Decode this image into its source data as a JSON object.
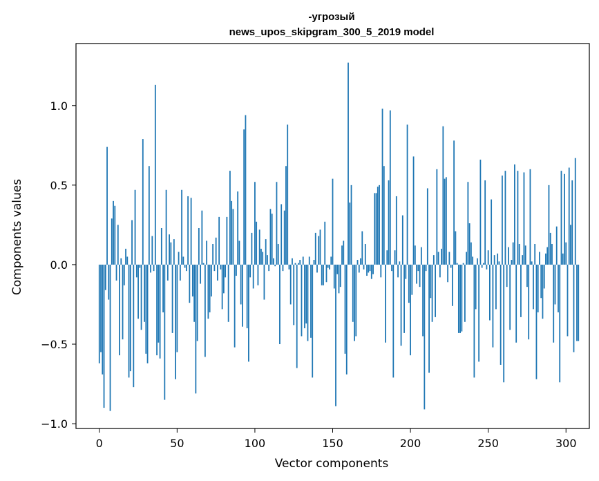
{
  "chart_data": {
    "type": "bar",
    "title_lines": [
      "-угрозый",
      "news_upos_skipgram_300_5_2019 model"
    ],
    "xlabel": "Vector components",
    "ylabel": "Components values",
    "xlim": [
      -15,
      315
    ],
    "ylim": [
      -1.03,
      1.39
    ],
    "xticks": [
      0,
      50,
      100,
      150,
      200,
      250,
      300
    ],
    "xtick_labels": [
      "0",
      "50",
      "100",
      "150",
      "200",
      "250",
      "300"
    ],
    "yticks": [
      -1.0,
      -0.5,
      0.0,
      0.5,
      1.0
    ],
    "ytick_labels": [
      "−1.0",
      "−0.5",
      "0.0",
      "0.5",
      "1.0"
    ],
    "bar_color": "#1f77b4",
    "grid": false,
    "values": [
      -0.62,
      -0.55,
      -0.69,
      -0.9,
      -0.16,
      0.74,
      -0.22,
      -0.92,
      0.29,
      0.4,
      0.37,
      -0.1,
      0.25,
      -0.57,
      0.04,
      -0.47,
      -0.13,
      0.1,
      0.05,
      -0.71,
      -0.67,
      0.28,
      -0.77,
      0.47,
      -0.08,
      -0.34,
      -0.02,
      -0.41,
      0.79,
      -0.36,
      -0.56,
      -0.62,
      0.62,
      -0.05,
      0.18,
      -0.04,
      1.13,
      -0.57,
      -0.49,
      -0.59,
      0.23,
      -0.3,
      -0.85,
      0.47,
      -0.1,
      0.19,
      0.14,
      -0.43,
      0.16,
      -0.72,
      -0.55,
      0.08,
      -0.1,
      0.47,
      0.05,
      -0.02,
      -0.04,
      0.43,
      -0.24,
      0.42,
      -0.2,
      -0.36,
      -0.81,
      -0.48,
      0.23,
      -0.12,
      0.34,
      0.01,
      -0.58,
      0.15,
      -0.34,
      -0.3,
      -0.2,
      0.13,
      -0.04,
      0.17,
      -0.1,
      0.3,
      -0.03,
      -0.28,
      -0.18,
      -0.08,
      0.3,
      -0.36,
      0.59,
      0.4,
      0.35,
      -0.52,
      -0.07,
      0.46,
      0.15,
      -0.25,
      -0.39,
      0.85,
      0.94,
      -0.4,
      -0.61,
      -0.08,
      0.2,
      -0.15,
      0.52,
      0.27,
      -0.13,
      0.22,
      0.1,
      0.08,
      -0.22,
      0.16,
      0.06,
      -0.04,
      0.35,
      0.32,
      0.04,
      -0.01,
      0.52,
      0.13,
      -0.5,
      0.38,
      -0.04,
      0.34,
      0.62,
      0.88,
      -0.03,
      -0.25,
      0.04,
      -0.38,
      0.01,
      -0.65,
      0.01,
      0.03,
      -0.45,
      0.05,
      -0.4,
      -0.37,
      -0.48,
      0.05,
      -0.46,
      -0.71,
      0.03,
      0.2,
      -0.05,
      0.18,
      0.22,
      -0.13,
      -0.13,
      0.27,
      -0.11,
      -0.02,
      -0.03,
      0.05,
      0.54,
      -0.15,
      -0.89,
      -0.06,
      -0.18,
      -0.14,
      0.12,
      0.15,
      -0.56,
      -0.69,
      1.27,
      0.39,
      0.5,
      -0.36,
      -0.48,
      -0.45,
      0.03,
      -0.05,
      0.04,
      0.21,
      -0.03,
      0.13,
      -0.07,
      -0.05,
      -0.04,
      -0.09,
      -0.06,
      0.45,
      0.45,
      0.49,
      0.5,
      -0.08,
      0.98,
      0.62,
      -0.49,
      0.09,
      0.53,
      0.97,
      -0.04,
      -0.71,
      0.09,
      0.43,
      -0.08,
      0.02,
      -0.51,
      0.31,
      -0.43,
      -0.09,
      0.88,
      -0.24,
      -0.57,
      -0.19,
      0.68,
      0.12,
      -0.12,
      -0.04,
      -0.14,
      0.11,
      -0.45,
      -0.91,
      -0.04,
      0.48,
      -0.68,
      -0.21,
      -0.36,
      0.06,
      -0.33,
      0.6,
      0.08,
      -0.08,
      0.1,
      0.87,
      0.54,
      0.55,
      -0.11,
      0.08,
      -0.02,
      -0.26,
      0.78,
      0.21,
      0.01,
      -0.43,
      -0.43,
      -0.42,
      0.01,
      -0.36,
      0.08,
      0.52,
      0.26,
      0.14,
      0.05,
      -0.71,
      -0.28,
      0.04,
      -0.61,
      0.66,
      -0.02,
      0.01,
      0.53,
      -0.03,
      0.09,
      -0.35,
      0.41,
      -0.52,
      0.06,
      -0.28,
      0.07,
      0.02,
      -0.63,
      0.56,
      -0.74,
      0.59,
      -0.14,
      0.11,
      -0.41,
      0.03,
      0.14,
      0.63,
      -0.49,
      0.59,
      0.13,
      -0.33,
      0.06,
      0.58,
      0.12,
      -0.14,
      -0.47,
      0.6,
      0.02,
      -0.28,
      0.13,
      -0.72,
      -0.3,
      0.08,
      -0.21,
      -0.34,
      -0.15,
      0.07,
      0.11,
      0.5,
      0.2,
      0.13,
      -0.49,
      -0.25,
      0.24,
      -0.3,
      -0.74,
      0.59,
      0.07,
      0.57,
      0.14,
      -0.45,
      0.61,
      0.25,
      0.53,
      -0.55,
      0.67,
      -0.48,
      -0.48
    ]
  }
}
